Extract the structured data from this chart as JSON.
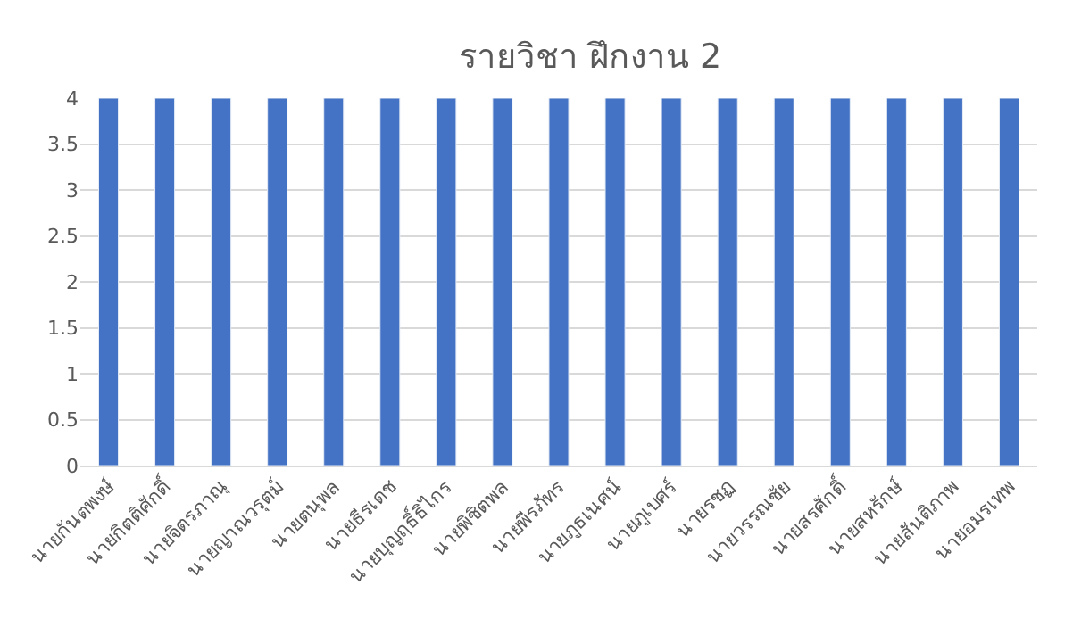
{
  "chart_data": {
    "type": "bar",
    "title": "รายวิชา ฝึกงาน 2",
    "categories": [
      "นายกันตพงษ์",
      "นายกิตติศักดิ์",
      "นายจิตรภาณุ",
      "นายญาณวรุตม์",
      "นายตนุพล",
      "นายธีรเดช",
      "นายบุญฤธิ์ธิไกร",
      "นายพิชิตพล",
      "นายพีรภัทร",
      "นายภูธเนศน์",
      "นายภูเบศร์",
      "นายรชฏ",
      "นายวรรณชัย",
      "นายสรศักดิ์",
      "นายสหรักษ์",
      "นายสันติภาพ",
      "นายอมรเทพ"
    ],
    "values": [
      4,
      4,
      4,
      4,
      4,
      4,
      4,
      4,
      4,
      4,
      4,
      4,
      4,
      4,
      4,
      4,
      4
    ],
    "color": "#4472c4",
    "ylim": [
      0,
      4
    ],
    "yticks": [
      0,
      0.5,
      1,
      1.5,
      2,
      2.5,
      3,
      3.5,
      4
    ],
    "grid": "y"
  }
}
